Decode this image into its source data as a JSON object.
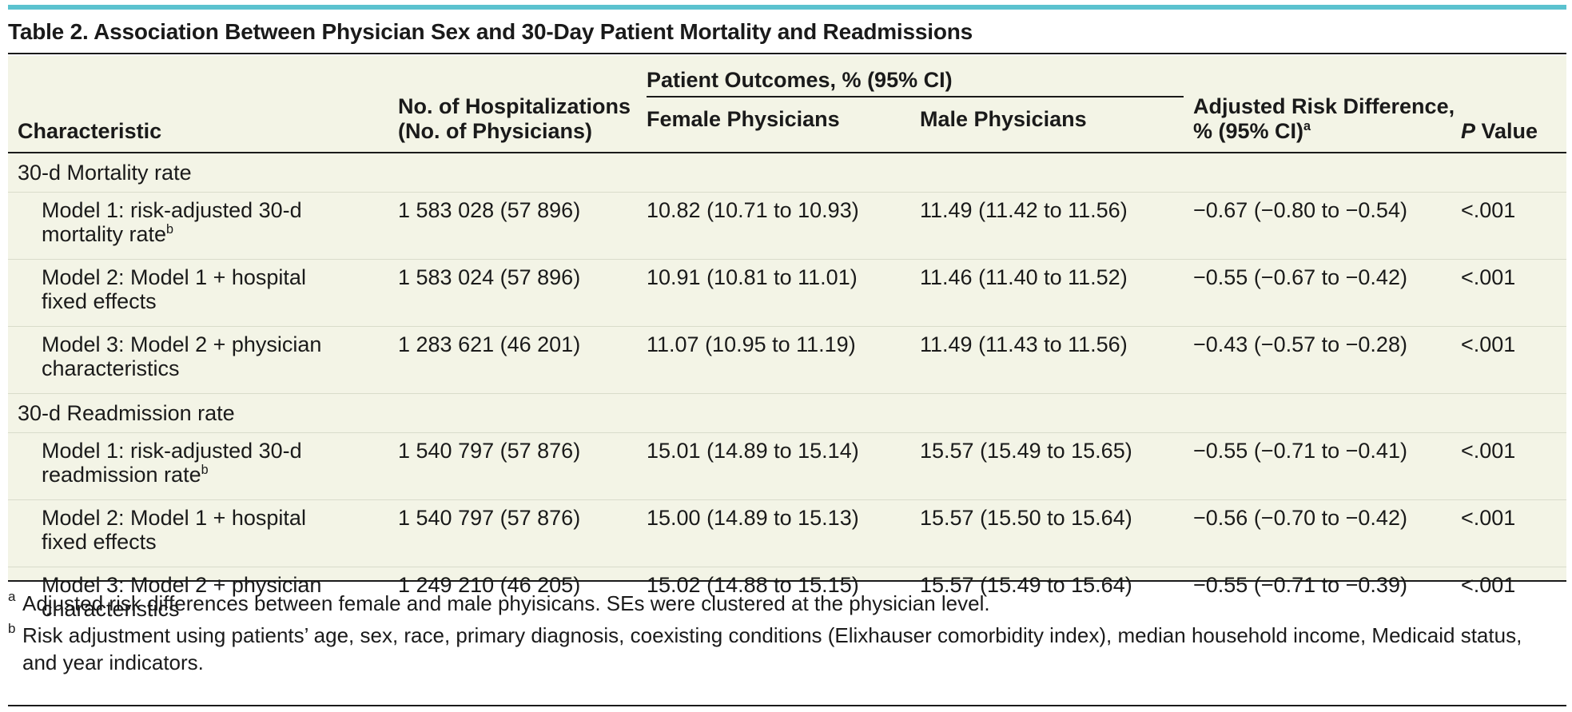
{
  "title": "Table 2. Association Between Physician Sex and 30-Day Patient Mortality and Readmissions",
  "headers": {
    "characteristic": "Characteristic",
    "hospitalizations": [
      "No. of Hospitalizations",
      "(No. of Physicians)"
    ],
    "patient_outcomes": "Patient Outcomes, % (95% CI)",
    "female": "Female Physicians",
    "male": "Male Physicians",
    "risk_diff": [
      "Adjusted Risk Difference,",
      "% (95% CI)"
    ],
    "risk_diff_mark": "a",
    "p_value_italic": "P",
    "p_value_rest": " Value"
  },
  "groups": [
    {
      "label": "30-d Mortality rate",
      "rows": [
        {
          "label": [
            "Model 1: risk-adjusted 30-d",
            "mortality rate"
          ],
          "mark": "b",
          "n": "1 583 028 (57 896)",
          "female": "10.82 (10.71 to 10.93)",
          "male": "11.49 (11.42 to 11.56)",
          "diff": "−0.67 (−0.80 to −0.54)",
          "p": "<.001"
        },
        {
          "label": [
            "Model 2: Model 1 + hospital",
            "fixed effects"
          ],
          "mark": "",
          "n": "1 583 024 (57 896)",
          "female": "10.91 (10.81 to 11.01)",
          "male": "11.46 (11.40 to 11.52)",
          "diff": "−0.55 (−0.67 to −0.42)",
          "p": "<.001"
        },
        {
          "label": [
            "Model 3: Model 2 + physician",
            "characteristics"
          ],
          "mark": "",
          "n": "1 283 621 (46 201)",
          "female": "11.07 (10.95 to 11.19)",
          "male": "11.49 (11.43 to 11.56)",
          "diff": "−0.43 (−0.57 to −0.28)",
          "p": "<.001"
        }
      ]
    },
    {
      "label": "30-d Readmission rate",
      "rows": [
        {
          "label": [
            "Model 1: risk-adjusted 30-d",
            "readmission rate"
          ],
          "mark": "b",
          "n": "1 540 797 (57 876)",
          "female": "15.01 (14.89 to 15.14)",
          "male": "15.57 (15.49 to 15.65)",
          "diff": "−0.55 (−0.71 to −0.41)",
          "p": "<.001"
        },
        {
          "label": [
            "Model 2: Model 1 + hospital",
            "fixed effects"
          ],
          "mark": "",
          "n": "1 540 797 (57 876)",
          "female": "15.00 (14.89 to 15.13)",
          "male": "15.57 (15.50 to 15.64)",
          "diff": "−0.56 (−0.70 to −0.42)",
          "p": "<.001"
        },
        {
          "label": [
            "Model 3: Model 2 + physician",
            "characteristics"
          ],
          "mark": "",
          "n": "1 249 210 (46 205)",
          "female": "15.02 (14.88 to 15.15)",
          "male": "15.57 (15.49 to 15.64)",
          "diff": "−0.55 (−0.71 to −0.39)",
          "p": "<.001"
        }
      ]
    }
  ],
  "footnotes": [
    {
      "mark": "a",
      "text": "Adjusted risk differences between female and male phyisicans. SEs were clustered at the physician level."
    },
    {
      "mark": "b",
      "lines": [
        "Risk adjustment using patients’ age, sex, race, primary diagnosis, coexisting conditions (Elixhauser comorbidity index), median household income, Medicaid status,",
        "and year indicators."
      ]
    }
  ],
  "colors": {
    "accent_rule": "#5bc2cf",
    "table_background": "#f3f4e6"
  }
}
